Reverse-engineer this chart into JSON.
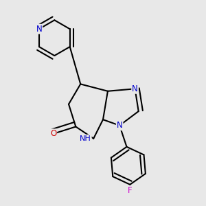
{
  "bg_color": "#e8e8e8",
  "atom_colors": {
    "N": "#0000cc",
    "O": "#cc0000",
    "F": "#cc00cc"
  },
  "bond_color": "#000000",
  "bond_width": 1.5,
  "font_size_atoms": 8.5
}
